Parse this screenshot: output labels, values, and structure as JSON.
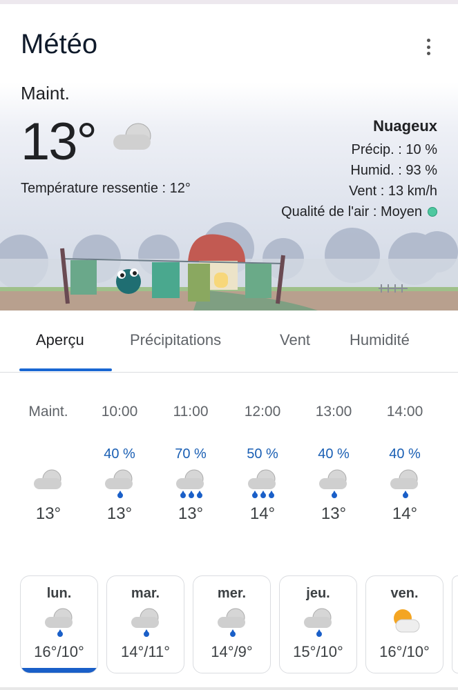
{
  "app": {
    "title": "Météo"
  },
  "current": {
    "label": "Maint.",
    "temp": "13°",
    "feels_like": "Température ressentie : 12°",
    "condition": "Nuageux",
    "precip": "Précip. : 10 %",
    "humidity": "Humid. : 93 %",
    "wind": "Vent : 13 km/h",
    "air_quality": "Qualité de l'air : Moyen",
    "air_quality_color": "#4fc8a0",
    "icon": "cloud-icon"
  },
  "tabs": [
    {
      "label": "Aperçu",
      "active": true
    },
    {
      "label": "Précipitations"
    },
    {
      "label": "Vent"
    },
    {
      "label": "Humidité"
    }
  ],
  "hourly": [
    {
      "time": "Maint.",
      "precip": "",
      "temp": "13°",
      "icon": "cloud"
    },
    {
      "time": "10:00",
      "precip": "40 %",
      "temp": "13°",
      "icon": "rain1"
    },
    {
      "time": "11:00",
      "precip": "70 %",
      "temp": "13°",
      "icon": "rain3"
    },
    {
      "time": "12:00",
      "precip": "50 %",
      "temp": "14°",
      "icon": "rain3"
    },
    {
      "time": "13:00",
      "precip": "40 %",
      "temp": "13°",
      "icon": "rain1"
    },
    {
      "time": "14:00",
      "precip": "40 %",
      "temp": "14°",
      "icon": "rain1"
    }
  ],
  "daily": [
    {
      "day": "lun.",
      "temps": "16°/10°",
      "icon": "rain1",
      "selected": true
    },
    {
      "day": "mar.",
      "temps": "14°/11°",
      "icon": "rain1"
    },
    {
      "day": "mer.",
      "temps": "14°/9°",
      "icon": "rain1"
    },
    {
      "day": "jeu.",
      "temps": "15°/10°",
      "icon": "rain1"
    },
    {
      "day": "ven.",
      "temps": "16°/10°",
      "icon": "sun-cloud"
    }
  ],
  "colors": {
    "accent": "#1967d2",
    "precip_text": "#1a5fb4"
  }
}
